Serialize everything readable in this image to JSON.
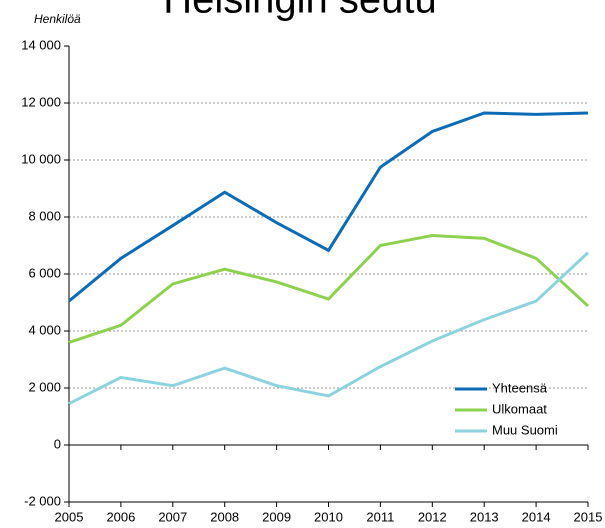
{
  "chart_data": {
    "type": "line",
    "title": "Helsingin seutu",
    "y_label": "Henkilöä",
    "x": [
      2005,
      2006,
      2007,
      2008,
      2009,
      2010,
      2011,
      2012,
      2013,
      2014,
      2015
    ],
    "xlim": [
      2005,
      2015
    ],
    "xticks": [
      2005,
      2006,
      2007,
      2008,
      2009,
      2010,
      2011,
      2012,
      2013,
      2014,
      2015
    ],
    "ylim": [
      -2000,
      14000
    ],
    "yticks": [
      {
        "value": -2000,
        "label": "-2 000"
      },
      0,
      {
        "value": 2000,
        "label": "2 000"
      },
      {
        "value": 4000,
        "label": "4 000"
      },
      {
        "value": 6000,
        "label": "6 000"
      },
      {
        "value": 8000,
        "label": "8 000"
      },
      {
        "value": 10000,
        "label": "10 000"
      },
      {
        "value": 12000,
        "label": "12 000"
      },
      {
        "value": 14000,
        "label": "14 000"
      }
    ],
    "grid": true,
    "legend": "lower right",
    "series": [
      {
        "name": "Yhteensä",
        "color": "#0b6bb5",
        "values": [
          5050,
          6550,
          7700,
          8870,
          7800,
          6830,
          9750,
          11000,
          11650,
          11600,
          11650
        ]
      },
      {
        "name": "Ulkomaat",
        "color": "#8ed14e",
        "values": [
          3600,
          4200,
          5650,
          6170,
          5720,
          5120,
          7000,
          7350,
          7250,
          6550,
          4880
        ]
      },
      {
        "name": "Muu Suomi",
        "color": "#8dd3df",
        "values": [
          1450,
          2370,
          2080,
          2700,
          2080,
          1720,
          2750,
          3650,
          4400,
          5050,
          6750
        ]
      }
    ]
  }
}
